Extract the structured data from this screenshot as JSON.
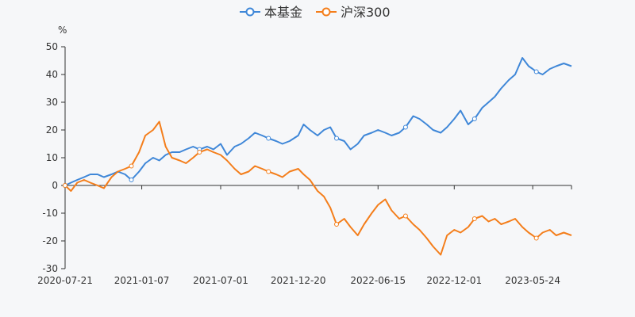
{
  "chart_data": {
    "type": "line",
    "title": "",
    "ylabel": "%",
    "xlabel": "",
    "ylim": [
      -30,
      50
    ],
    "yticks": [
      -30,
      -20,
      -10,
      0,
      10,
      20,
      30,
      40,
      50
    ],
    "grid": false,
    "legend_position": "top-center",
    "x_range": [
      "2020-07-21",
      "2023-08-18"
    ],
    "xtick_labels": [
      "2020-07-21",
      "2021-01-07",
      "2021-07-01",
      "2021-12-20",
      "2022-06-15",
      "2022-12-01",
      "2023-05-24"
    ],
    "series": [
      {
        "name": "本基金",
        "color": "#3f87d8",
        "points": [
          [
            "2020-07-21",
            0
          ],
          [
            "2020-08-03",
            1
          ],
          [
            "2020-08-17",
            2
          ],
          [
            "2020-09-01",
            3
          ],
          [
            "2020-09-15",
            4
          ],
          [
            "2020-10-01",
            4
          ],
          [
            "2020-10-15",
            3
          ],
          [
            "2020-11-01",
            4
          ],
          [
            "2020-11-15",
            5
          ],
          [
            "2020-12-01",
            4
          ],
          [
            "2020-12-15",
            2
          ],
          [
            "2021-01-01",
            5
          ],
          [
            "2021-01-15",
            8
          ],
          [
            "2021-02-01",
            10
          ],
          [
            "2021-02-15",
            9
          ],
          [
            "2021-03-01",
            11
          ],
          [
            "2021-03-15",
            12
          ],
          [
            "2021-04-01",
            12
          ],
          [
            "2021-04-15",
            13
          ],
          [
            "2021-05-01",
            14
          ],
          [
            "2021-05-15",
            13
          ],
          [
            "2021-06-01",
            14
          ],
          [
            "2021-06-15",
            13
          ],
          [
            "2021-07-01",
            15
          ],
          [
            "2021-07-15",
            11
          ],
          [
            "2021-08-01",
            14
          ],
          [
            "2021-08-15",
            15
          ],
          [
            "2021-09-01",
            17
          ],
          [
            "2021-09-15",
            19
          ],
          [
            "2021-10-01",
            18
          ],
          [
            "2021-10-15",
            17
          ],
          [
            "2021-11-01",
            16
          ],
          [
            "2021-11-15",
            15
          ],
          [
            "2021-12-01",
            16
          ],
          [
            "2021-12-20",
            18
          ],
          [
            "2022-01-01",
            22
          ],
          [
            "2022-01-15",
            20
          ],
          [
            "2022-02-01",
            18
          ],
          [
            "2022-02-15",
            20
          ],
          [
            "2022-03-01",
            21
          ],
          [
            "2022-03-15",
            17
          ],
          [
            "2022-04-01",
            16
          ],
          [
            "2022-04-15",
            13
          ],
          [
            "2022-05-01",
            15
          ],
          [
            "2022-05-15",
            18
          ],
          [
            "2022-06-01",
            19
          ],
          [
            "2022-06-15",
            20
          ],
          [
            "2022-07-01",
            19
          ],
          [
            "2022-07-15",
            18
          ],
          [
            "2022-08-01",
            19
          ],
          [
            "2022-08-15",
            21
          ],
          [
            "2022-09-01",
            25
          ],
          [
            "2022-09-15",
            24
          ],
          [
            "2022-10-01",
            22
          ],
          [
            "2022-10-15",
            20
          ],
          [
            "2022-11-01",
            19
          ],
          [
            "2022-11-15",
            21
          ],
          [
            "2022-12-01",
            24
          ],
          [
            "2022-12-15",
            27
          ],
          [
            "2023-01-01",
            22
          ],
          [
            "2023-01-15",
            24
          ],
          [
            "2023-02-01",
            28
          ],
          [
            "2023-02-15",
            30
          ],
          [
            "2023-03-01",
            32
          ],
          [
            "2023-03-15",
            35
          ],
          [
            "2023-04-01",
            38
          ],
          [
            "2023-04-15",
            40
          ],
          [
            "2023-05-01",
            46
          ],
          [
            "2023-05-15",
            43
          ],
          [
            "2023-05-24",
            42
          ],
          [
            "2023-06-01",
            41
          ],
          [
            "2023-06-15",
            40
          ],
          [
            "2023-07-01",
            42
          ],
          [
            "2023-07-15",
            43
          ],
          [
            "2023-08-01",
            44
          ],
          [
            "2023-08-18",
            43
          ]
        ]
      },
      {
        "name": "沪深300",
        "color": "#f47e1b",
        "points": [
          [
            "2020-07-21",
            0
          ],
          [
            "2020-08-03",
            -2
          ],
          [
            "2020-08-17",
            1
          ],
          [
            "2020-09-01",
            2
          ],
          [
            "2020-09-15",
            1
          ],
          [
            "2020-10-01",
            0
          ],
          [
            "2020-10-15",
            -1
          ],
          [
            "2020-11-01",
            3
          ],
          [
            "2020-11-15",
            5
          ],
          [
            "2020-12-01",
            6
          ],
          [
            "2020-12-15",
            7
          ],
          [
            "2021-01-01",
            12
          ],
          [
            "2021-01-15",
            18
          ],
          [
            "2021-02-01",
            20
          ],
          [
            "2021-02-15",
            23
          ],
          [
            "2021-03-01",
            14
          ],
          [
            "2021-03-15",
            10
          ],
          [
            "2021-04-01",
            9
          ],
          [
            "2021-04-15",
            8
          ],
          [
            "2021-05-01",
            10
          ],
          [
            "2021-05-15",
            12
          ],
          [
            "2021-06-01",
            13
          ],
          [
            "2021-06-15",
            12
          ],
          [
            "2021-07-01",
            11
          ],
          [
            "2021-07-15",
            9
          ],
          [
            "2021-08-01",
            6
          ],
          [
            "2021-08-15",
            4
          ],
          [
            "2021-09-01",
            5
          ],
          [
            "2021-09-15",
            7
          ],
          [
            "2021-10-01",
            6
          ],
          [
            "2021-10-15",
            5
          ],
          [
            "2021-11-01",
            4
          ],
          [
            "2021-11-15",
            3
          ],
          [
            "2021-12-01",
            5
          ],
          [
            "2021-12-20",
            6
          ],
          [
            "2022-01-01",
            4
          ],
          [
            "2022-01-15",
            2
          ],
          [
            "2022-02-01",
            -2
          ],
          [
            "2022-02-15",
            -4
          ],
          [
            "2022-03-01",
            -8
          ],
          [
            "2022-03-15",
            -14
          ],
          [
            "2022-04-01",
            -12
          ],
          [
            "2022-04-15",
            -15
          ],
          [
            "2022-05-01",
            -18
          ],
          [
            "2022-05-15",
            -14
          ],
          [
            "2022-06-01",
            -10
          ],
          [
            "2022-06-15",
            -7
          ],
          [
            "2022-07-01",
            -5
          ],
          [
            "2022-07-15",
            -9
          ],
          [
            "2022-08-01",
            -12
          ],
          [
            "2022-08-15",
            -11
          ],
          [
            "2022-09-01",
            -14
          ],
          [
            "2022-09-15",
            -16
          ],
          [
            "2022-10-01",
            -19
          ],
          [
            "2022-10-15",
            -22
          ],
          [
            "2022-11-01",
            -25
          ],
          [
            "2022-11-15",
            -18
          ],
          [
            "2022-12-01",
            -16
          ],
          [
            "2022-12-15",
            -17
          ],
          [
            "2023-01-01",
            -15
          ],
          [
            "2023-01-15",
            -12
          ],
          [
            "2023-02-01",
            -11
          ],
          [
            "2023-02-15",
            -13
          ],
          [
            "2023-03-01",
            -12
          ],
          [
            "2023-03-15",
            -14
          ],
          [
            "2023-04-01",
            -13
          ],
          [
            "2023-04-15",
            -12
          ],
          [
            "2023-05-01",
            -15
          ],
          [
            "2023-05-15",
            -17
          ],
          [
            "2023-05-24",
            -18
          ],
          [
            "2023-06-01",
            -19
          ],
          [
            "2023-06-15",
            -17
          ],
          [
            "2023-07-01",
            -16
          ],
          [
            "2023-07-15",
            -18
          ],
          [
            "2023-08-01",
            -17
          ],
          [
            "2023-08-18",
            -18
          ]
        ]
      }
    ]
  }
}
